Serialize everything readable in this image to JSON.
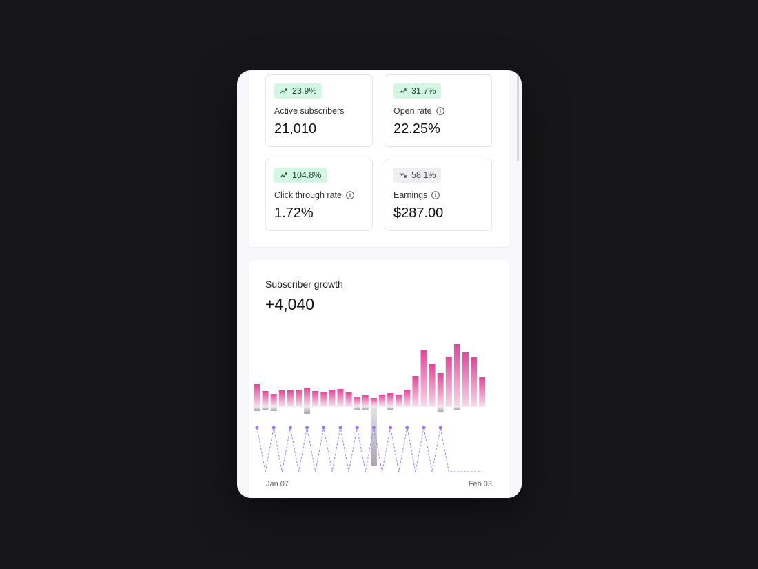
{
  "stats": [
    {
      "badge": "23.9%",
      "trend": "up",
      "label": "Active subscribers",
      "value": "21,010",
      "info": false
    },
    {
      "badge": "31.7%",
      "trend": "up",
      "label": "Open rate",
      "value": "22.25%",
      "info": true
    },
    {
      "badge": "104.8%",
      "trend": "up",
      "label": "Click through rate",
      "value": "1.72%",
      "info": true
    },
    {
      "badge": "58.1%",
      "trend": "down",
      "label": "Earnings",
      "value": "$287.00",
      "info": true
    }
  ],
  "chart_data": {
    "type": "bar",
    "title": "Subscriber growth",
    "subtitle": "+4,040",
    "x_labels": [
      "Jan 07",
      "Feb 03"
    ],
    "series": [
      {
        "color": "#e0479a",
        "values": [
          31,
          21,
          17,
          22,
          22,
          23,
          26,
          21,
          20,
          23,
          24,
          19,
          13,
          15,
          11,
          16,
          18,
          16,
          23,
          43,
          81,
          60,
          47,
          71,
          89,
          77,
          70,
          41
        ]
      },
      {
        "color": "#b9b4c0",
        "values": [
          -6,
          -4,
          -6,
          0,
          0,
          0,
          -10,
          0,
          0,
          0,
          0,
          0,
          -4,
          -4,
          -86,
          0,
          -4,
          0,
          0,
          0,
          0,
          0,
          -8,
          0,
          -4,
          0,
          0,
          0
        ]
      },
      {
        "color": "#9b7cf0",
        "values": [
          1,
          0,
          1,
          0,
          1,
          0,
          1,
          0,
          1,
          0,
          1,
          0,
          1,
          0,
          1,
          0,
          1,
          0,
          1,
          0,
          1,
          0,
          1,
          0,
          0,
          0,
          0,
          0
        ]
      }
    ]
  }
}
